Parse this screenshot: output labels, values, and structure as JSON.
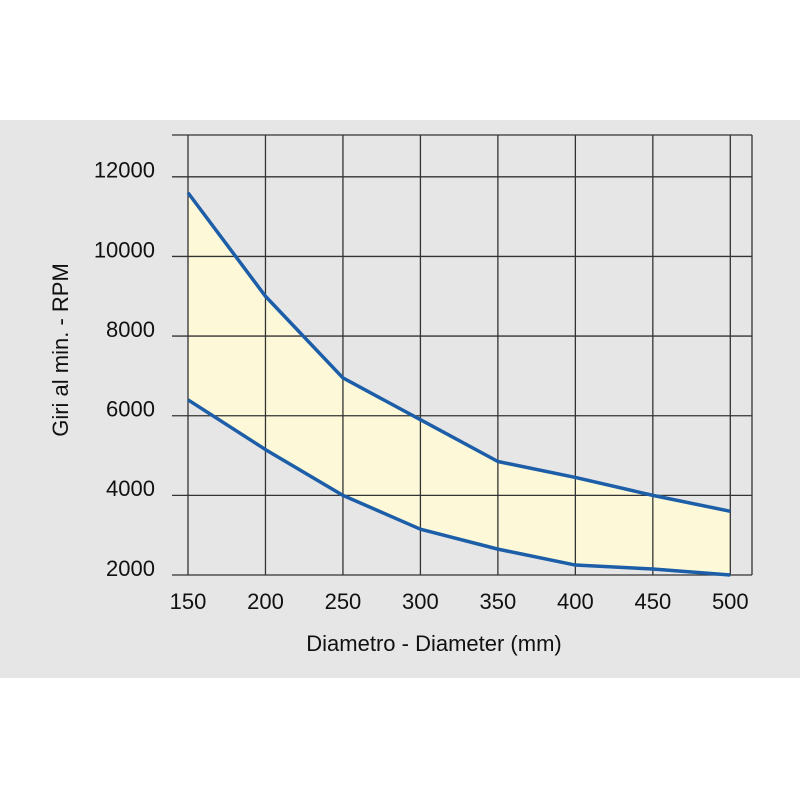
{
  "chart_data": {
    "type": "line",
    "x_label": "Diametro - Diameter (mm)",
    "y_label": "Giri al min. - RPM",
    "x": [
      150,
      200,
      250,
      300,
      350,
      400,
      450,
      500
    ],
    "series": [
      {
        "color": "#1d5ea8",
        "values": [
          11600,
          9000,
          6950,
          5900,
          4850,
          4450,
          4000,
          3600
        ]
      },
      {
        "color": "#1d5ea8",
        "values": [
          6400,
          5150,
          4000,
          3150,
          2650,
          2250,
          2150,
          2000
        ]
      }
    ],
    "fill_between": true,
    "fill_color": "#fdf9d8",
    "xlim": [
      150,
      514
    ],
    "ylim": [
      2000,
      13050
    ],
    "xticks": [
      150,
      200,
      250,
      300,
      350,
      400,
      450,
      500
    ],
    "yticks": [
      2000,
      4000,
      6000,
      8000,
      10000,
      12000
    ],
    "grid": true
  }
}
